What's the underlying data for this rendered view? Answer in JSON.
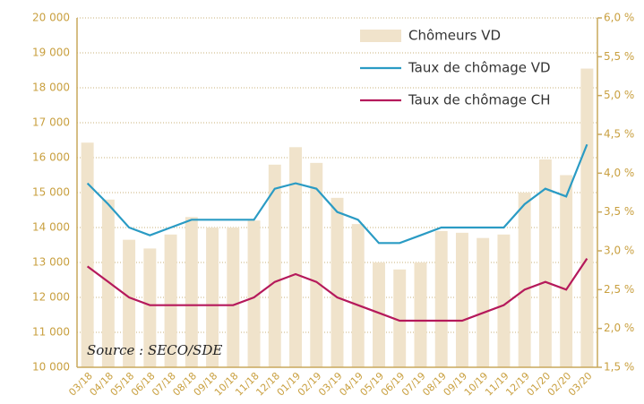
{
  "chart_data": {
    "type": "combo",
    "categories": [
      "03/18",
      "04/18",
      "05/18",
      "06/18",
      "07/18",
      "08/18",
      "09/18",
      "10/18",
      "11/18",
      "12/18",
      "01/19",
      "02/19",
      "03/19",
      "04/19",
      "05/19",
      "06/19",
      "07/19",
      "08/19",
      "09/19",
      "10/19",
      "11/19",
      "12/19",
      "01/20",
      "02/20",
      "03/20"
    ],
    "series": [
      {
        "name": "Chômeurs VD",
        "type": "bar",
        "color": "#f0e3cb",
        "values": [
          16430,
          14800,
          13650,
          13400,
          13800,
          14300,
          14000,
          14000,
          14200,
          15800,
          16300,
          15850,
          14850,
          14100,
          13000,
          12800,
          13000,
          13900,
          13850,
          13700,
          13800,
          15000,
          15950,
          15500,
          18550
        ]
      },
      {
        "name": "Taux de chômage VD",
        "type": "line",
        "axis": "y2",
        "color": "#2a9bc4",
        "values": [
          3.87,
          3.6,
          3.3,
          3.2,
          3.3,
          3.4,
          3.4,
          3.4,
          3.4,
          3.8,
          3.87,
          3.8,
          3.5,
          3.4,
          3.1,
          3.1,
          3.2,
          3.3,
          3.3,
          3.3,
          3.3,
          3.6,
          3.8,
          3.7,
          4.37
        ]
      },
      {
        "name": "Taux de chômage CH",
        "type": "line",
        "axis": "y2",
        "color": "#b5195b",
        "values": [
          2.8,
          2.6,
          2.4,
          2.3,
          2.3,
          2.3,
          2.3,
          2.3,
          2.4,
          2.6,
          2.7,
          2.6,
          2.4,
          2.3,
          2.2,
          2.1,
          2.1,
          2.1,
          2.1,
          2.2,
          2.3,
          2.5,
          2.6,
          2.5,
          2.9
        ]
      }
    ],
    "ylim": [
      10000,
      20000
    ],
    "yticks": [
      {
        "value": 10000,
        "label": "10 000"
      },
      {
        "value": 11000,
        "label": "11 000"
      },
      {
        "value": 12000,
        "label": "12 000"
      },
      {
        "value": 13000,
        "label": "13 000"
      },
      {
        "value": 14000,
        "label": "14 000"
      },
      {
        "value": 15000,
        "label": "15 000"
      },
      {
        "value": 16000,
        "label": "16 000"
      },
      {
        "value": 17000,
        "label": "17 000"
      },
      {
        "value": 18000,
        "label": "18 000"
      },
      {
        "value": 19000,
        "label": "19 000"
      },
      {
        "value": 20000,
        "label": "20 000"
      }
    ],
    "y2lim": [
      1.5,
      6.0
    ],
    "y2ticks": [
      {
        "value": 1.5,
        "label": "1,5 %"
      },
      {
        "value": 2.0,
        "label": "2,0 %"
      },
      {
        "value": 2.5,
        "label": "2,5 %"
      },
      {
        "value": 3.0,
        "label": "3,0 %"
      },
      {
        "value": 3.5,
        "label": "3,5 %"
      },
      {
        "value": 4.0,
        "label": "4,0 %"
      },
      {
        "value": 4.5,
        "label": "4,5 %"
      },
      {
        "value": 5.0,
        "label": "5,0 %"
      },
      {
        "value": 5.5,
        "label": "5,5 %"
      },
      {
        "value": 6.0,
        "label": "6,0 %"
      }
    ],
    "annotation": "Source : SECO/SDE",
    "grid": true
  }
}
